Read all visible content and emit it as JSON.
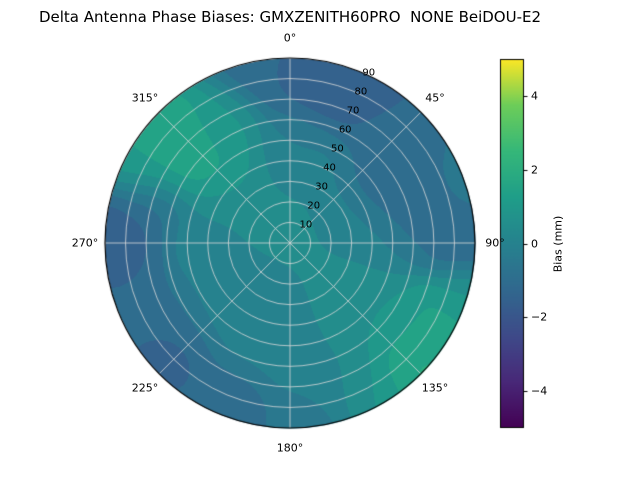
{
  "title": "Delta Antenna Phase Biases: GMXZENITH60PRO  NONE BeiDOU-E2",
  "chart_data": {
    "type": "polar_contour",
    "title": "Delta Antenna Phase Biases: GMXZENITH60PRO  NONE BeiDOU-E2",
    "angular_unit": "degrees",
    "angular_direction": "clockwise",
    "zero_location": "top",
    "angular_ticks": [
      {
        "label": "0°",
        "deg": 0
      },
      {
        "label": "45°",
        "deg": 45
      },
      {
        "label": "90°",
        "deg": 90
      },
      {
        "label": "135°",
        "deg": 135
      },
      {
        "label": "180°",
        "deg": 180
      },
      {
        "label": "225°",
        "deg": 225
      },
      {
        "label": "270°",
        "deg": 270
      },
      {
        "label": "315°",
        "deg": 315
      }
    ],
    "radial_ticks": [
      10,
      20,
      30,
      40,
      50,
      60,
      70,
      80,
      90
    ],
    "radial_max": 90,
    "radial_label_angle_deg": 22.5,
    "value_range": [
      -5,
      5
    ],
    "band_step": 0.5,
    "base_value": 0.2,
    "base_weight": 0.05,
    "grid_color": "rgba(218,218,218,0.9)",
    "outline_color": "#000000",
    "colormap_viridis": [
      "#440154",
      "#482878",
      "#3e4a89",
      "#31688e",
      "#26828e",
      "#1f9e89",
      "#35b779",
      "#6dcd59",
      "#fde725"
    ],
    "colorbar": {
      "label": "Bias (mm)",
      "min": -5,
      "max": 5,
      "ticks": [
        {
          "label": "−4",
          "value": -4
        },
        {
          "label": "−2",
          "value": -2
        },
        {
          "label": "0",
          "value": 0
        },
        {
          "label": "2",
          "value": 2
        },
        {
          "label": "4",
          "value": 4
        }
      ]
    },
    "samples": [
      {
        "az": 355,
        "r": 88,
        "v": -1.2,
        "s": 14
      },
      {
        "az": 12,
        "r": 82,
        "v": -1.8,
        "s": 14
      },
      {
        "az": 30,
        "r": 85,
        "v": -1.5,
        "s": 13
      },
      {
        "az": 45,
        "r": 75,
        "v": -1.0,
        "s": 12
      },
      {
        "az": 60,
        "r": 50,
        "v": -1.3,
        "s": 13
      },
      {
        "az": 80,
        "r": 60,
        "v": -1.0,
        "s": 12
      },
      {
        "az": 92,
        "r": 85,
        "v": -1.2,
        "s": 10
      },
      {
        "az": 105,
        "r": 88,
        "v": 0.8,
        "s": 8
      },
      {
        "az": 118,
        "r": 80,
        "v": 1.4,
        "s": 11
      },
      {
        "az": 130,
        "r": 65,
        "v": 1.2,
        "s": 11
      },
      {
        "az": 135,
        "r": 85,
        "v": 2.0,
        "s": 12
      },
      {
        "az": 150,
        "r": 85,
        "v": 0.8,
        "s": 10
      },
      {
        "az": 175,
        "r": 85,
        "v": -0.6,
        "s": 11
      },
      {
        "az": 200,
        "r": 82,
        "v": -1.2,
        "s": 12
      },
      {
        "az": 228,
        "r": 78,
        "v": -1.5,
        "s": 13
      },
      {
        "az": 245,
        "r": 70,
        "v": -1.0,
        "s": 12
      },
      {
        "az": 262,
        "r": 80,
        "v": -1.4,
        "s": 11
      },
      {
        "az": 273,
        "r": 82,
        "v": -1.8,
        "s": 11
      },
      {
        "az": 285,
        "r": 70,
        "v": -1.0,
        "s": 11
      },
      {
        "az": 298,
        "r": 80,
        "v": 1.2,
        "s": 10
      },
      {
        "az": 310,
        "r": 68,
        "v": 2.0,
        "s": 13
      },
      {
        "az": 320,
        "r": 50,
        "v": 1.3,
        "s": 12
      },
      {
        "az": 330,
        "r": 65,
        "v": 0.8,
        "s": 10
      },
      {
        "az": 0,
        "r": 0,
        "v": 0.3,
        "s": 25
      },
      {
        "az": 0,
        "r": 45,
        "v": -0.3,
        "s": 12
      },
      {
        "az": 90,
        "r": 30,
        "v": 0.2,
        "s": 15
      },
      {
        "az": 135,
        "r": 45,
        "v": 0.5,
        "s": 15
      },
      {
        "az": 180,
        "r": 45,
        "v": 0.1,
        "s": 18
      },
      {
        "az": 225,
        "r": 40,
        "v": 0.0,
        "s": 15
      },
      {
        "az": 270,
        "r": 40,
        "v": 0.1,
        "s": 15
      },
      {
        "az": 315,
        "r": 20,
        "v": 0.4,
        "s": 12
      },
      {
        "az": 160,
        "r": 70,
        "v": 0.2,
        "s": 12
      }
    ]
  }
}
